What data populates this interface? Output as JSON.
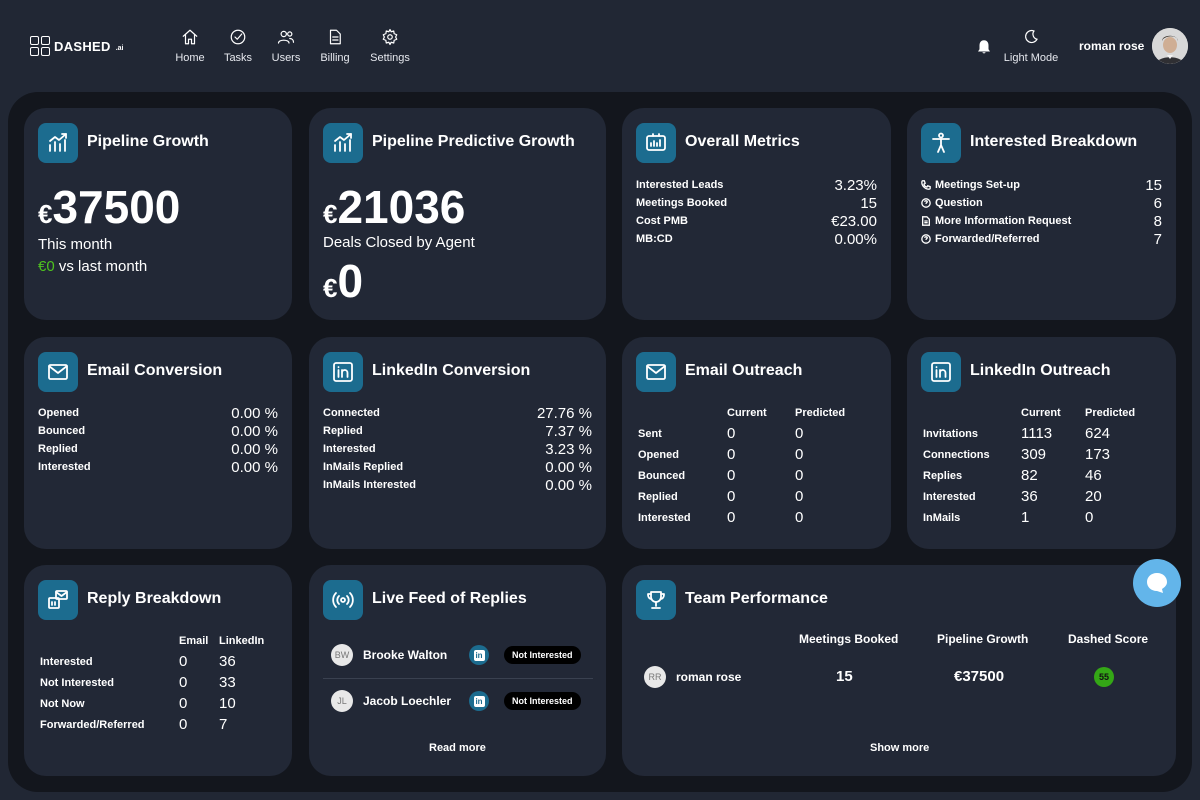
{
  "brand": {
    "name": "DASHED",
    "suffix": ".ai"
  },
  "nav": [
    {
      "label": "Home",
      "icon": "home-icon"
    },
    {
      "label": "Tasks",
      "icon": "check-circle-icon"
    },
    {
      "label": "Users",
      "icon": "users-icon"
    },
    {
      "label": "Billing",
      "icon": "document-icon"
    },
    {
      "label": "Settings",
      "icon": "gear-icon"
    }
  ],
  "header": {
    "mode_label": "Light Mode",
    "user_name": "roman rose"
  },
  "pipeline_growth": {
    "title": "Pipeline Growth",
    "currency": "€",
    "value": "37500",
    "period": "This month",
    "delta": "€0",
    "delta_suffix": " vs last month"
  },
  "predictive_growth": {
    "title": "Pipeline Predictive Growth",
    "currency": "€",
    "value": "21036",
    "deals_label": "Deals Closed by Agent",
    "deals_value": "0"
  },
  "overall_metrics": {
    "title": "Overall Metrics",
    "rows": [
      {
        "label": "Interested Leads",
        "value": "3.23%"
      },
      {
        "label": "Meetings Booked",
        "value": "15"
      },
      {
        "label": "Cost PMB",
        "value": "€23.00"
      },
      {
        "label": "MB:CD",
        "value": "0.00%"
      }
    ]
  },
  "interested_breakdown": {
    "title": "Interested Breakdown",
    "rows": [
      {
        "label": "Meetings Set-up",
        "value": "15",
        "icon": "phone-icon"
      },
      {
        "label": "Question",
        "value": "6",
        "icon": "question-icon"
      },
      {
        "label": "More Information Request",
        "value": "8",
        "icon": "file-icon"
      },
      {
        "label": "Forwarded/Referred",
        "value": "7",
        "icon": "question-icon"
      }
    ]
  },
  "email_conversion": {
    "title": "Email Conversion",
    "rows": [
      {
        "label": "Opened",
        "value": "0.00 %"
      },
      {
        "label": "Bounced",
        "value": "0.00 %"
      },
      {
        "label": "Replied",
        "value": "0.00 %"
      },
      {
        "label": "Interested",
        "value": "0.00 %"
      }
    ]
  },
  "linkedin_conversion": {
    "title": "LinkedIn Conversion",
    "rows": [
      {
        "label": "Connected",
        "value": "27.76 %"
      },
      {
        "label": "Replied",
        "value": "7.37 %"
      },
      {
        "label": "Interested",
        "value": "3.23 %"
      },
      {
        "label": "InMails Replied",
        "value": "0.00 %"
      },
      {
        "label": "InMails Interested",
        "value": "0.00 %"
      }
    ]
  },
  "email_outreach": {
    "title": "Email Outreach",
    "col_current": "Current",
    "col_predicted": "Predicted",
    "rows": [
      {
        "label": "Sent",
        "current": "0",
        "predicted": "0"
      },
      {
        "label": "Opened",
        "current": "0",
        "predicted": "0"
      },
      {
        "label": "Bounced",
        "current": "0",
        "predicted": "0"
      },
      {
        "label": "Replied",
        "current": "0",
        "predicted": "0"
      },
      {
        "label": "Interested",
        "current": "0",
        "predicted": "0"
      }
    ]
  },
  "linkedin_outreach": {
    "title": "LinkedIn Outreach",
    "col_current": "Current",
    "col_predicted": "Predicted",
    "rows": [
      {
        "label": "Invitations",
        "current": "1113",
        "predicted": "624"
      },
      {
        "label": "Connections",
        "current": "309",
        "predicted": "173"
      },
      {
        "label": "Replies",
        "current": "82",
        "predicted": "46"
      },
      {
        "label": "Interested",
        "current": "36",
        "predicted": "20"
      },
      {
        "label": "InMails",
        "current": "1",
        "predicted": "0"
      }
    ]
  },
  "reply_breakdown": {
    "title": "Reply Breakdown",
    "col_email": "Email",
    "col_linkedin": "LinkedIn",
    "rows": [
      {
        "label": "Interested",
        "email": "0",
        "linkedin": "36"
      },
      {
        "label": "Not Interested",
        "email": "0",
        "linkedin": "33"
      },
      {
        "label": "Not Now",
        "email": "0",
        "linkedin": "10"
      },
      {
        "label": "Forwarded/Referred",
        "email": "0",
        "linkedin": "7"
      }
    ]
  },
  "live_feed": {
    "title": "Live Feed of Replies",
    "items": [
      {
        "initials": "BW",
        "name": "Brooke Walton",
        "channel": "in",
        "status": "Not Interested"
      },
      {
        "initials": "JL",
        "name": "Jacob Loechler",
        "channel": "in",
        "status": "Not Interested"
      }
    ],
    "read_more": "Read more"
  },
  "team_performance": {
    "title": "Team Performance",
    "columns": [
      "Meetings Booked",
      "Pipeline Growth",
      "Dashed Score"
    ],
    "member": {
      "initials": "RR",
      "name": "roman rose",
      "meetings": "15",
      "pipeline": "€37500",
      "score": "55"
    },
    "show_more": "Show more"
  },
  "colors": {
    "accent": "#1c6c8f",
    "positive": "#4ec21f",
    "score": "#34a716",
    "chat": "#63b5ea"
  }
}
